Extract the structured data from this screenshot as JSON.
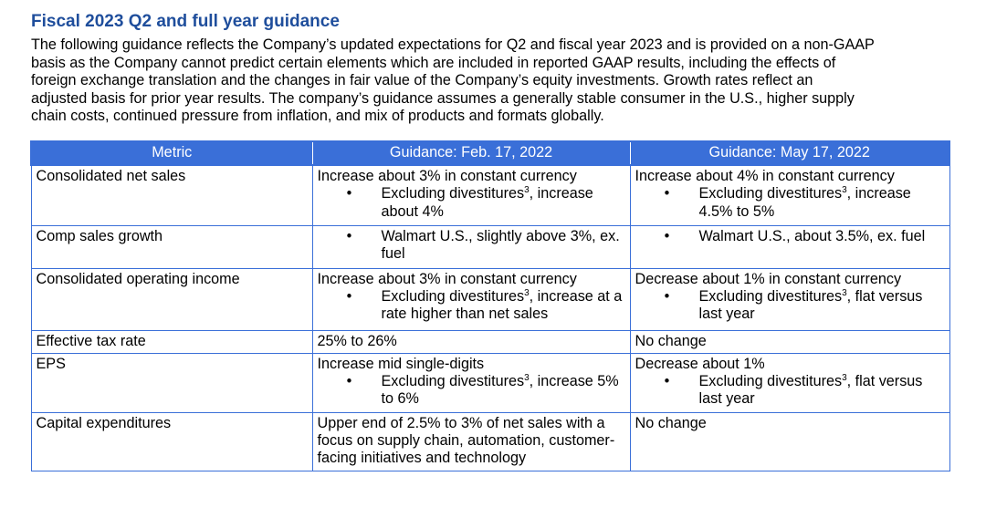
{
  "section": {
    "title": "Fiscal 2023 Q2 and full year guidance",
    "intro_lines": [
      "The following guidance reflects the Company’s updated expectations for Q2 and fiscal year 2023 and is provided on a non-GAAP",
      "basis as the Company cannot predict certain elements which are included in reported GAAP results, including the effects of",
      "foreign exchange translation and the changes in fair value of the Company’s equity investments. Growth rates reflect an",
      "adjusted basis for prior year results. The company’s guidance assumes a generally stable consumer in the U.S., higher supply",
      "chain costs, continued pressure from inflation, and mix of products and formats globally."
    ]
  },
  "table": {
    "headers": [
      "Metric",
      "Guidance: Feb. 17, 2022",
      "Guidance: May 17, 2022"
    ],
    "bullet_symbol": "•",
    "footnote_marker": "3",
    "rows": [
      {
        "metric": "Consolidated net sales",
        "feb": {
          "main": "Increase about 3% in constant currency",
          "bullet_pre": "Excluding divestitures",
          "bullet_post": ", increase about 4%"
        },
        "may": {
          "main": "Increase about 4% in constant currency",
          "bullet_pre": "Excluding divestitures",
          "bullet_post": ", increase 4.5% to 5%"
        }
      },
      {
        "metric": "Comp sales growth",
        "feb": {
          "bullet": "Walmart U.S., slightly above 3%, ex. fuel"
        },
        "may": {
          "bullet": "Walmart U.S., about 3.5%, ex. fuel"
        }
      },
      {
        "metric": "Consolidated operating income",
        "feb": {
          "main": "Increase about 3% in constant currency",
          "bullet_pre": "Excluding divestitures",
          "bullet_post": ", increase at a rate higher than net sales"
        },
        "may": {
          "main": "Decrease about 1%  in constant currency",
          "bullet_pre": "Excluding divestitures",
          "bullet_post": ", flat versus last year"
        }
      },
      {
        "metric": "Effective tax rate",
        "feb": {
          "text": "25% to 26%"
        },
        "may": {
          "text": "No change"
        }
      },
      {
        "metric": "EPS",
        "feb": {
          "main": "Increase mid single-digits",
          "bullet_pre": "Excluding divestitures",
          "bullet_post": ", increase 5% to 6%"
        },
        "may": {
          "main": "Decrease about 1%",
          "bullet_pre": "Excluding divestitures",
          "bullet_post": ", flat versus last year"
        }
      },
      {
        "metric": "Capital expenditures",
        "feb": {
          "text": "Upper end of 2.5% to 3% of net sales with a focus on supply chain, automation, customer-facing initiatives and technology"
        },
        "may": {
          "text": "No change"
        }
      }
    ]
  }
}
